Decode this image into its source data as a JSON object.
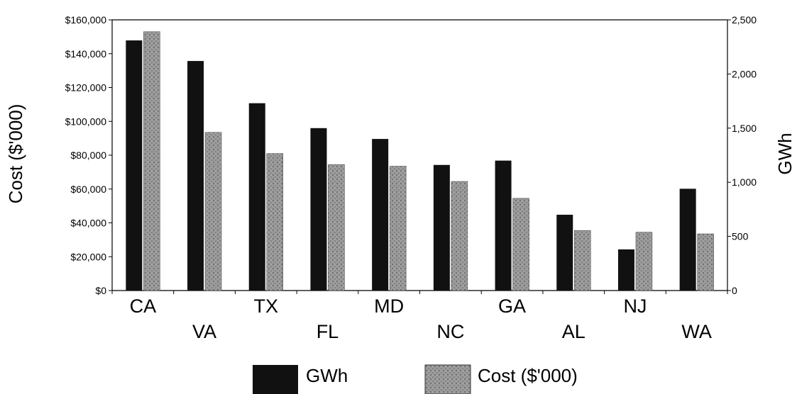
{
  "chart_data": {
    "type": "bar",
    "categories": [
      "CA",
      "VA",
      "TX",
      "FL",
      "MD",
      "NC",
      "GA",
      "AL",
      "NJ",
      "WA"
    ],
    "series": [
      {
        "name": "GWh",
        "axis": "right",
        "color": "#111111",
        "values": [
          2310,
          2120,
          1730,
          1500,
          1400,
          1160,
          1200,
          700,
          380,
          940
        ]
      },
      {
        "name": "Cost ($'000)",
        "axis": "left",
        "color": "#9a9a9a",
        "values": [
          153000,
          93500,
          81000,
          74500,
          73500,
          64500,
          54500,
          35500,
          34500,
          33500
        ]
      }
    ],
    "ylabel": "Cost ($'000)",
    "y2label": "GWh",
    "ylim": [
      0,
      160000
    ],
    "y2lim": [
      0,
      2500
    ],
    "yticks": [
      "$0",
      "$20,000",
      "$40,000",
      "$60,000",
      "$80,000",
      "$100,000",
      "$120,000",
      "$140,000",
      "$160,000"
    ],
    "y2ticks": [
      "0",
      "500",
      "1,000",
      "1,500",
      "2,000",
      "2,500"
    ],
    "legend": [
      "GWh",
      "Cost ($'000)"
    ],
    "legend_position": "bottom",
    "grid": false
  }
}
